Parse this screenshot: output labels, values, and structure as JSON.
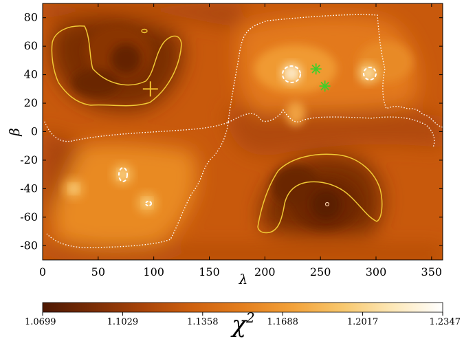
{
  "chart_data": {
    "type": "heatmap",
    "xlabel": "λ",
    "ylabel": "β",
    "xlim": [
      0,
      360
    ],
    "ylim": [
      -90,
      90
    ],
    "xticks": [
      "0",
      "50",
      "100",
      "150",
      "200",
      "250",
      "300",
      "350"
    ],
    "xtick_values": [
      0,
      50,
      100,
      150,
      200,
      250,
      300,
      350
    ],
    "yticks": [
      "80",
      "60",
      "40",
      "20",
      "0",
      "-20",
      "-40",
      "-60",
      "-80"
    ],
    "ytick_values": [
      80,
      60,
      40,
      20,
      0,
      -20,
      -40,
      -60,
      -80
    ],
    "grid": false,
    "colormap": {
      "name": "YlOrBr_r",
      "stops": [
        "#4e1803",
        "#7a2d05",
        "#a94409",
        "#cf610f",
        "#e47f1e",
        "#f3a23a",
        "#f8c86e",
        "#fde8b8",
        "#ffffff"
      ]
    },
    "colorbar": {
      "label": "χ",
      "label_superscript": "2",
      "ticks": [
        "1.0699",
        "1.1029",
        "1.1358",
        "1.1688",
        "1.2017",
        "1.2347"
      ],
      "range": [
        1.0699,
        1.2347
      ]
    },
    "markers": [
      {
        "kind": "plus",
        "lambda": 97,
        "beta": 30,
        "color": "#f2c12e"
      },
      {
        "kind": "asterisk",
        "lambda": 246,
        "beta": 44,
        "color": "#3fcf2a"
      },
      {
        "kind": "asterisk",
        "lambda": 254,
        "beta": 32,
        "color": "#3fcf2a"
      }
    ],
    "minima": [
      {
        "lambda": 75,
        "beta": 51,
        "level": 0.03
      },
      {
        "lambda": 255,
        "beta": -51,
        "level": 0.02
      }
    ],
    "maxima": [
      {
        "lambda": 224,
        "beta": 41,
        "level": 0.97
      },
      {
        "lambda": 293,
        "beta": 41,
        "level": 0.88
      },
      {
        "lambda": 72,
        "beta": -30,
        "level": 0.82
      },
      {
        "lambda": 94,
        "beta": -50,
        "level": 0.8
      },
      {
        "lambda": 28,
        "beta": -40,
        "level": 0.78
      }
    ]
  }
}
